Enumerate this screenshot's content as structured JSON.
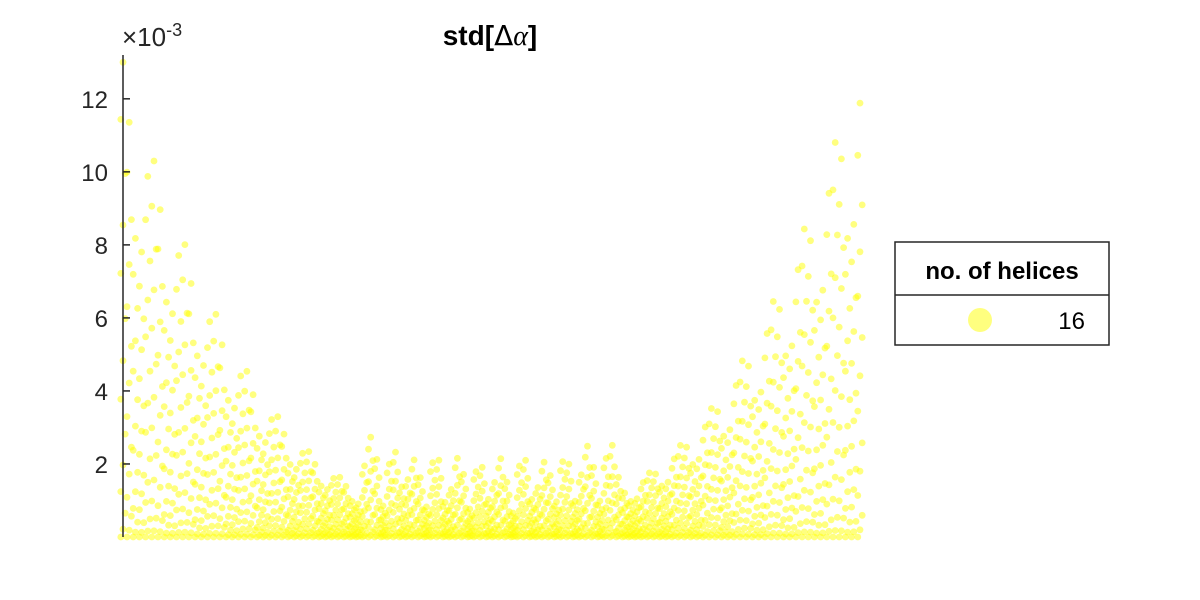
{
  "chart_data": {
    "type": "scatter",
    "title": "std[Δα]",
    "title_parts": {
      "prefix": "std[",
      "symbol_delta": "Δ",
      "symbol_alpha": "α",
      "suffix": "]"
    },
    "xlabel": "",
    "ylabel": "",
    "y_exponent_label": {
      "times": "×10",
      "power": "-3"
    },
    "ylim": [
      0,
      13.2
    ],
    "xlim": [
      0,
      1
    ],
    "y_ticks": [
      2,
      4,
      6,
      8,
      10,
      12
    ],
    "y_tick_labels": [
      "2",
      "4",
      "6",
      "8",
      "10",
      "12"
    ],
    "grid": false,
    "legend": {
      "title": "no. of helices",
      "entries": [
        "16"
      ],
      "placement": "right"
    },
    "series": [
      {
        "name": "16",
        "color": "#ffff00",
        "alpha": 0.5,
        "points": "many (~2000) markers; envelope high at both ends (~13e-3), decreasing to ~1-3e-3 in the middle with repeating comb-like peaks"
      }
    ]
  }
}
